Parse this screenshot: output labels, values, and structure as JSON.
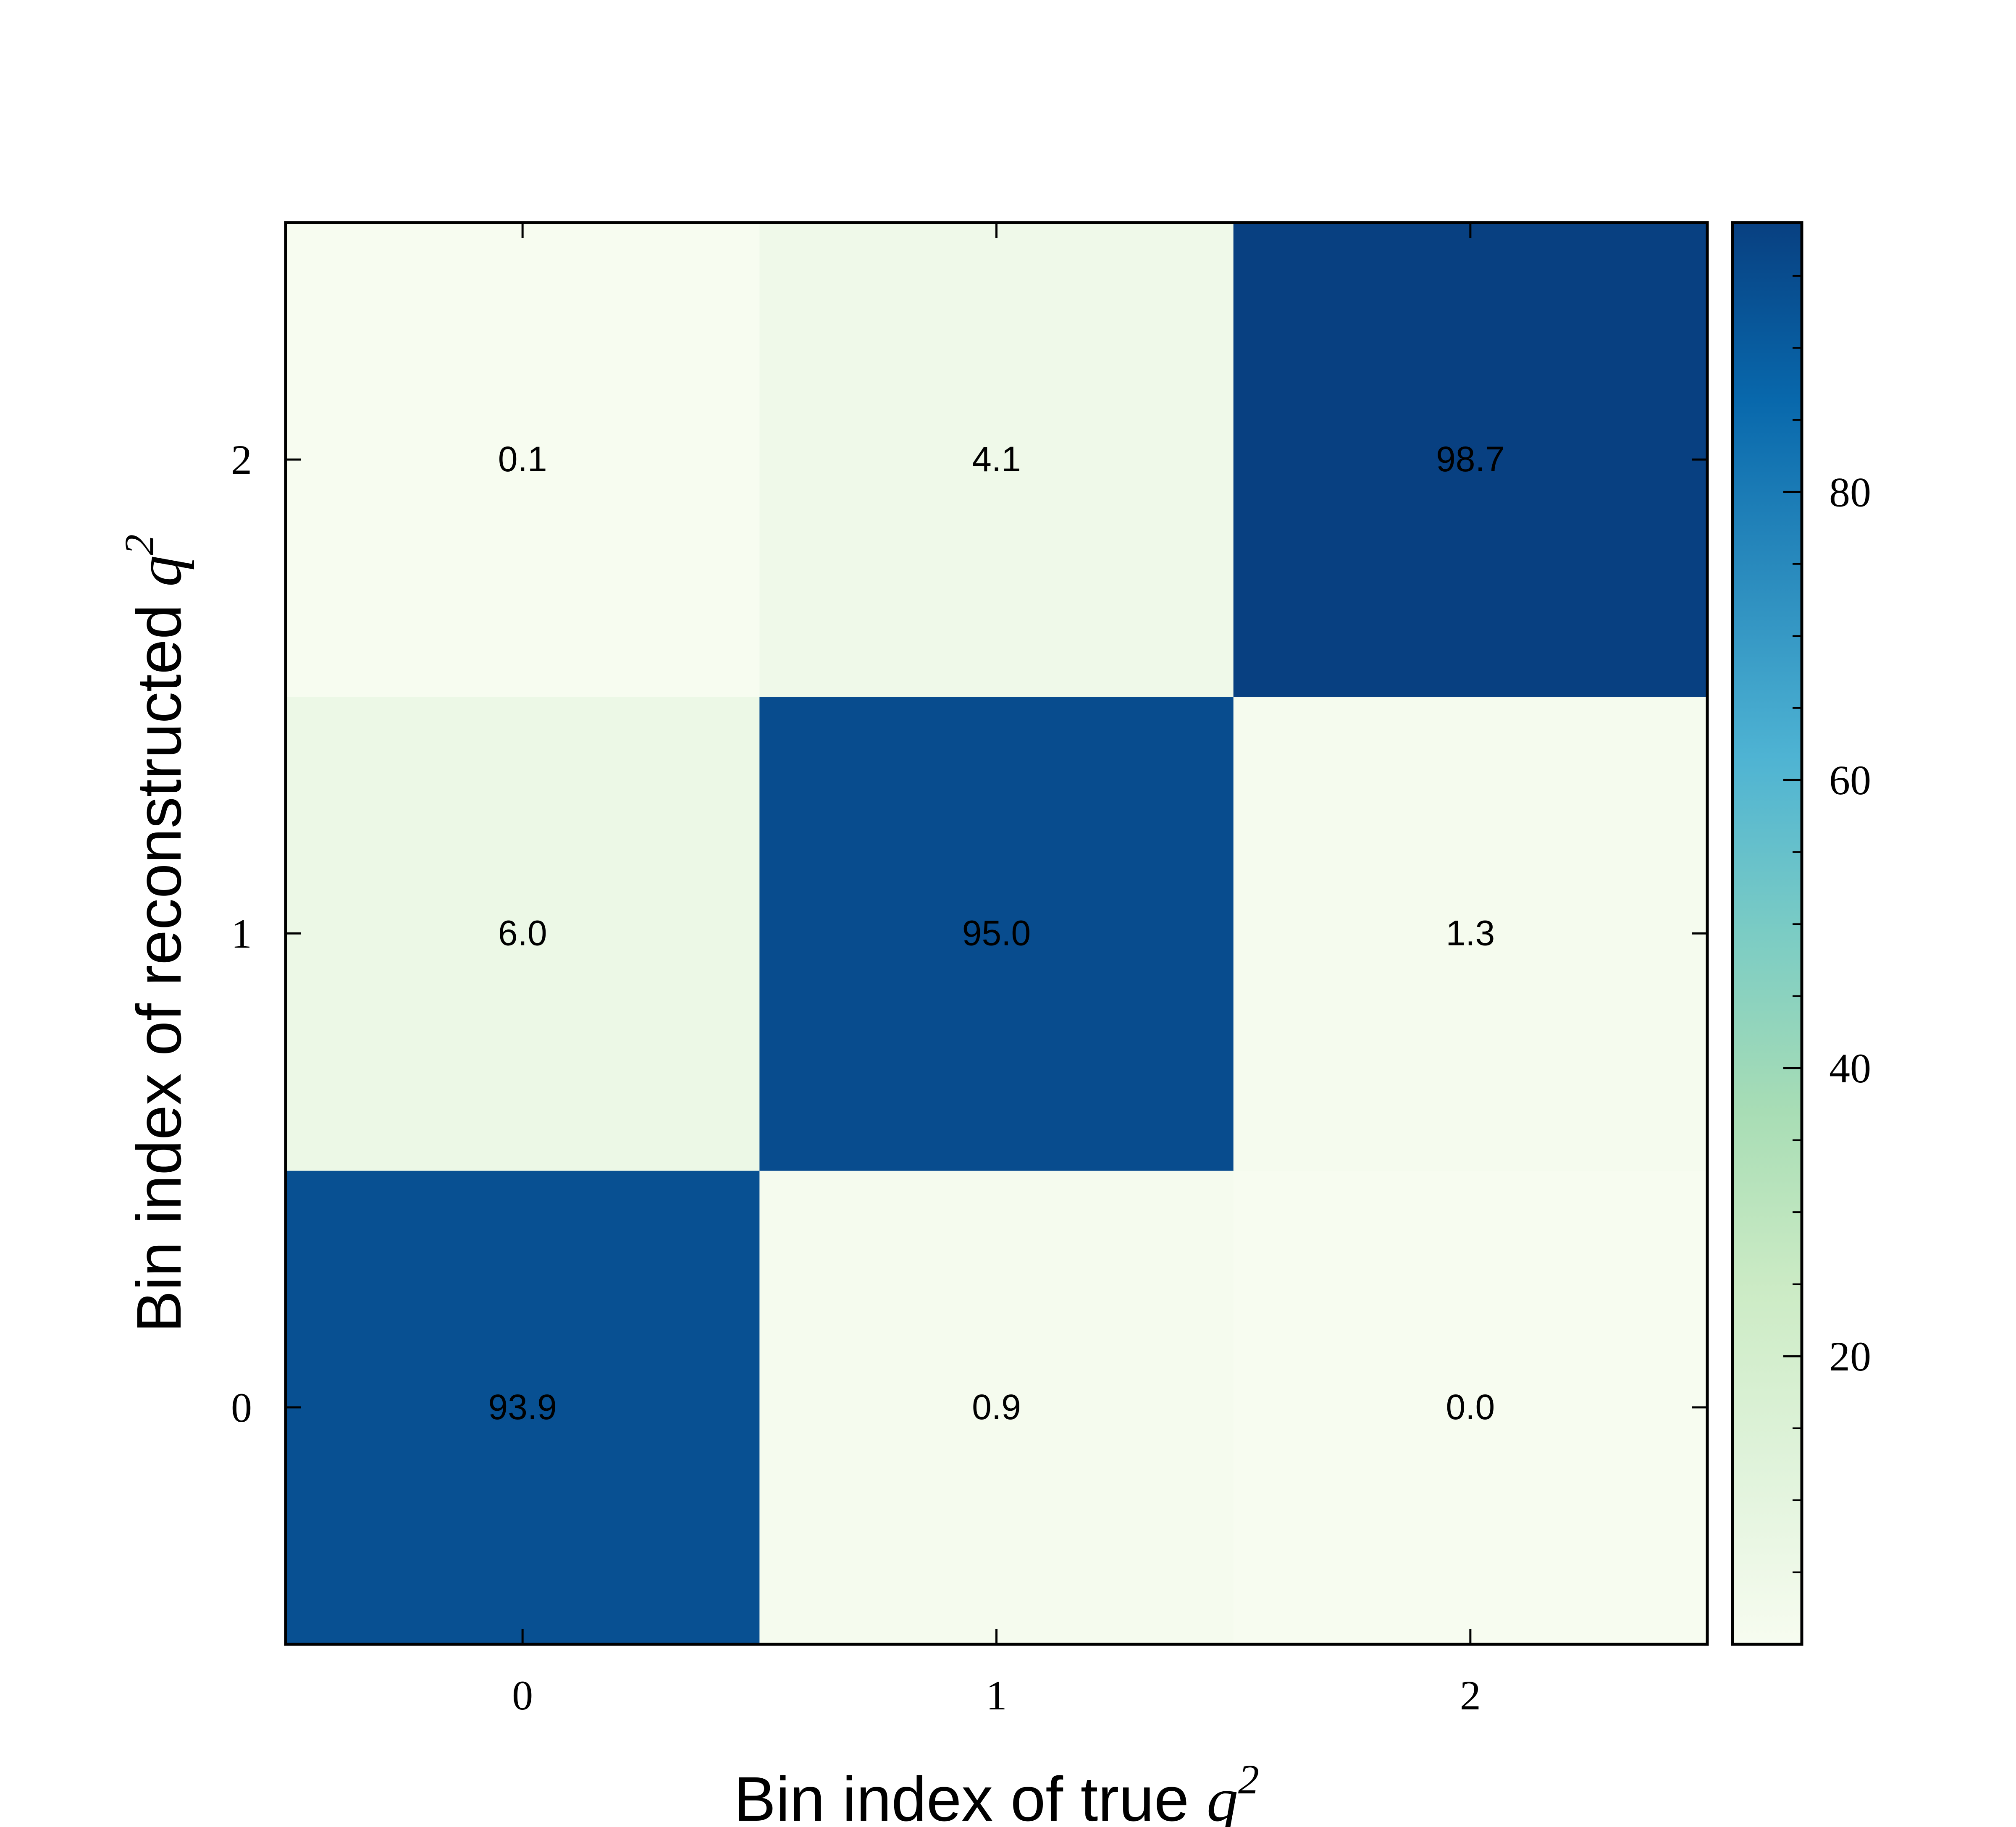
{
  "chart_data": {
    "type": "heatmap",
    "x_categories": [
      "0",
      "1",
      "2"
    ],
    "y_categories": [
      "0",
      "1",
      "2"
    ],
    "values": [
      [
        93.9,
        0.9,
        0.0
      ],
      [
        6.0,
        95.0,
        1.3
      ],
      [
        0.1,
        4.1,
        98.7
      ]
    ],
    "xlabel_text": "Bin index of true ",
    "ylabel_text": "Bin index of reconstructed ",
    "label_math": "q",
    "label_math_sup": "2",
    "colorbar": {
      "min": 0,
      "max": 98.7,
      "ticks": [
        20,
        40,
        60,
        80
      ],
      "colormap": "GnBu",
      "colors": [
        "#f7fcf0",
        "#e0f3db",
        "#ccebc5",
        "#a8ddb5",
        "#7bccc4",
        "#4eb3d3",
        "#2b8cbe",
        "#0868ac",
        "#084081"
      ]
    }
  }
}
